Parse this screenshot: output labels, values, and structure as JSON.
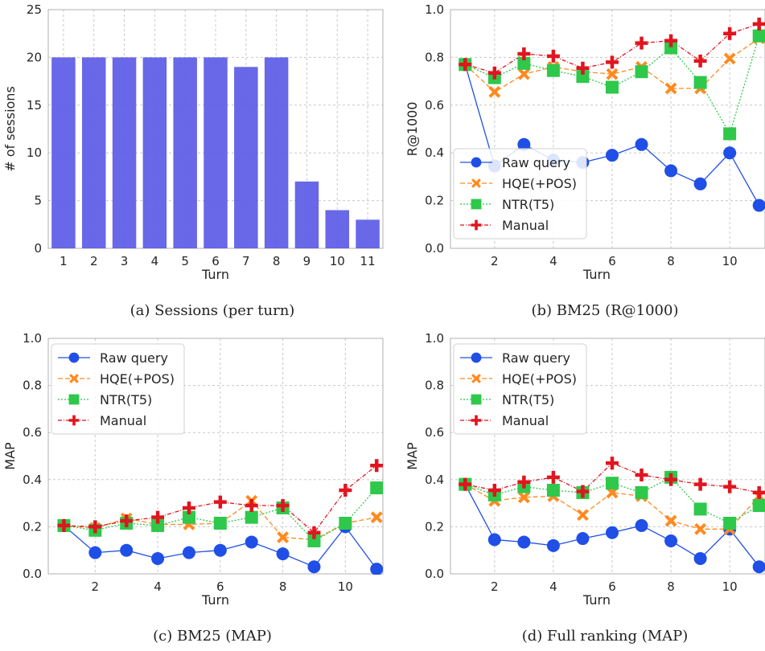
{
  "charts": [
    {
      "type": "bar",
      "caption": "(a) Sessions (per turn)",
      "xlabel": "Turn",
      "ylabel": "# of sessions",
      "categories": [
        "1",
        "2",
        "3",
        "4",
        "5",
        "6",
        "7",
        "8",
        "9",
        "10",
        "11"
      ],
      "values": [
        20,
        20,
        20,
        20,
        20,
        20,
        19,
        20,
        7,
        4,
        3
      ],
      "ylim": [
        0,
        25
      ],
      "yticks": [
        0,
        5,
        10,
        15,
        20,
        25
      ],
      "bar_color": "#5b5be6",
      "grid": true
    },
    {
      "type": "line",
      "caption": "(b) BM25 (R@1000)",
      "xlabel": "Turn",
      "ylabel": "R@1000",
      "x": [
        1,
        2,
        3,
        4,
        5,
        6,
        7,
        8,
        9,
        10,
        11
      ],
      "xticks": [
        2,
        4,
        6,
        8,
        10
      ],
      "ylim": [
        0,
        1.0
      ],
      "yticks": [
        0.0,
        0.2,
        0.4,
        0.6,
        0.8,
        1.0
      ],
      "legend": "center-left",
      "grid": true,
      "series": [
        {
          "name": "Raw query",
          "color": "#1f4fe6",
          "marker": "circle",
          "dash": "",
          "values": [
            0.77,
            0.345,
            0.435,
            0.37,
            0.36,
            0.39,
            0.435,
            0.325,
            0.27,
            0.4,
            0.18
          ]
        },
        {
          "name": "HQE(+POS)",
          "color": "#ff8a1f",
          "marker": "x",
          "dash": "6 3",
          "values": [
            0.77,
            0.655,
            0.73,
            0.76,
            0.74,
            0.73,
            0.76,
            0.67,
            0.67,
            0.795,
            0.88
          ]
        },
        {
          "name": "NTR(T5)",
          "color": "#2ec84a",
          "marker": "square",
          "dash": "2 2",
          "values": [
            0.77,
            0.715,
            0.775,
            0.745,
            0.72,
            0.675,
            0.74,
            0.84,
            0.695,
            0.48,
            0.89
          ]
        },
        {
          "name": "Manual",
          "color": "#e0151f",
          "marker": "plus",
          "dash": "5 2 1 2",
          "values": [
            0.77,
            0.735,
            0.815,
            0.805,
            0.755,
            0.78,
            0.86,
            0.87,
            0.785,
            0.9,
            0.94
          ]
        }
      ]
    },
    {
      "type": "line",
      "caption": "(c) BM25 (MAP)",
      "xlabel": "Turn",
      "ylabel": "MAP",
      "x": [
        1,
        2,
        3,
        4,
        5,
        6,
        7,
        8,
        9,
        10,
        11
      ],
      "xticks": [
        2,
        4,
        6,
        8,
        10
      ],
      "ylim": [
        0,
        1.0
      ],
      "yticks": [
        0.0,
        0.2,
        0.4,
        0.6,
        0.8,
        1.0
      ],
      "legend": "upper-left",
      "grid": true,
      "series": [
        {
          "name": "Raw query",
          "color": "#1f4fe6",
          "marker": "circle",
          "dash": "",
          "values": [
            0.205,
            0.09,
            0.1,
            0.065,
            0.09,
            0.1,
            0.135,
            0.085,
            0.03,
            0.2,
            0.02
          ]
        },
        {
          "name": "HQE(+POS)",
          "color": "#ff8a1f",
          "marker": "x",
          "dash": "6 3",
          "values": [
            0.205,
            0.195,
            0.235,
            0.21,
            0.21,
            0.215,
            0.31,
            0.155,
            0.145,
            0.215,
            0.24
          ]
        },
        {
          "name": "NTR(T5)",
          "color": "#2ec84a",
          "marker": "square",
          "dash": "2 2",
          "values": [
            0.205,
            0.185,
            0.215,
            0.205,
            0.24,
            0.215,
            0.24,
            0.28,
            0.14,
            0.215,
            0.365
          ]
        },
        {
          "name": "Manual",
          "color": "#e0151f",
          "marker": "plus",
          "dash": "5 2 1 2",
          "values": [
            0.205,
            0.2,
            0.225,
            0.24,
            0.28,
            0.305,
            0.29,
            0.29,
            0.175,
            0.355,
            0.46
          ]
        }
      ]
    },
    {
      "type": "line",
      "caption": "(d) Full ranking (MAP)",
      "xlabel": "Turn",
      "ylabel": "MAP",
      "x": [
        1,
        2,
        3,
        4,
        5,
        6,
        7,
        8,
        9,
        10,
        11
      ],
      "xticks": [
        2,
        4,
        6,
        8,
        10
      ],
      "ylim": [
        0,
        1.0
      ],
      "yticks": [
        0.0,
        0.2,
        0.4,
        0.6,
        0.8,
        1.0
      ],
      "legend": "upper-left",
      "grid": true,
      "series": [
        {
          "name": "Raw query",
          "color": "#1f4fe6",
          "marker": "circle",
          "dash": "",
          "values": [
            0.38,
            0.145,
            0.135,
            0.12,
            0.15,
            0.175,
            0.205,
            0.14,
            0.065,
            0.19,
            0.03
          ]
        },
        {
          "name": "HQE(+POS)",
          "color": "#ff8a1f",
          "marker": "x",
          "dash": "6 3",
          "values": [
            0.38,
            0.31,
            0.325,
            0.33,
            0.25,
            0.345,
            0.33,
            0.225,
            0.19,
            0.19,
            0.33
          ]
        },
        {
          "name": "NTR(T5)",
          "color": "#2ec84a",
          "marker": "square",
          "dash": "2 2",
          "values": [
            0.38,
            0.335,
            0.37,
            0.355,
            0.345,
            0.385,
            0.345,
            0.41,
            0.275,
            0.215,
            0.29
          ]
        },
        {
          "name": "Manual",
          "color": "#e0151f",
          "marker": "plus",
          "dash": "5 2 1 2",
          "values": [
            0.38,
            0.355,
            0.39,
            0.41,
            0.35,
            0.47,
            0.42,
            0.4,
            0.38,
            0.37,
            0.345
          ]
        }
      ]
    }
  ]
}
